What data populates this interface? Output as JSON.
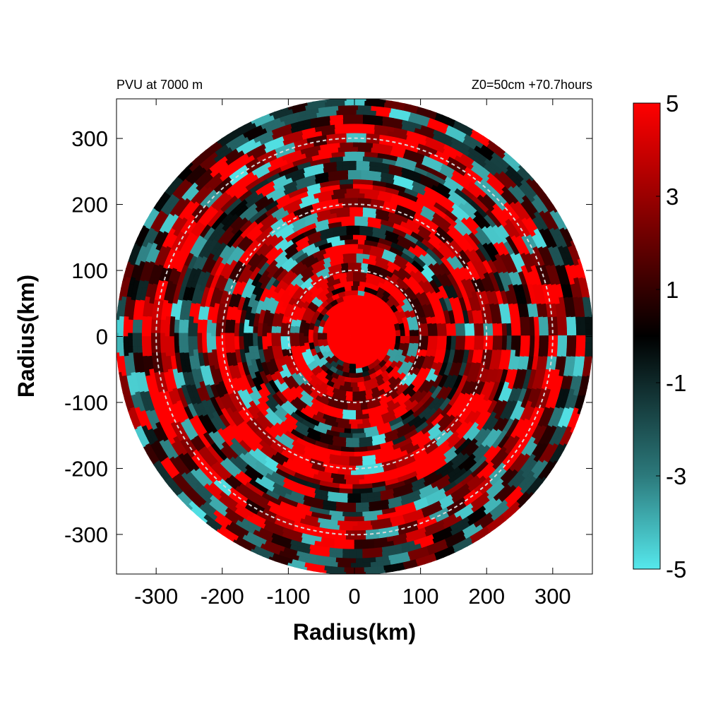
{
  "chart_data": {
    "type": "heatmap",
    "title_left": "PVU at  7000 m",
    "title_right": "Z0=50cm  +70.7hours",
    "xlabel": "Radius(km)",
    "ylabel": "Radius(km)",
    "xlim": [
      -360,
      360
    ],
    "ylim": [
      -360,
      360
    ],
    "x_ticks": [
      -300,
      -200,
      -100,
      0,
      100,
      200,
      300
    ],
    "y_ticks": [
      300,
      200,
      100,
      0,
      -100,
      -200,
      -300
    ],
    "x_tick_labels": [
      "-300",
      "-200",
      "-100",
      "0",
      "100",
      "200",
      "300"
    ],
    "y_tick_labels": [
      "300",
      "200",
      "100",
      "0",
      "-100",
      "-200",
      "-300"
    ],
    "domain_radius_km": 360,
    "reference_circles_km": [
      100,
      200,
      300
    ],
    "colorbar": {
      "min": -5,
      "max": 5,
      "tick_values": [
        5,
        3,
        1,
        -1,
        -3,
        -5
      ],
      "tick_labels": [
        "5",
        "3",
        "1",
        "-1",
        "-3",
        "-5"
      ],
      "colormap": [
        {
          "value": -5,
          "color": "#55e8ec"
        },
        {
          "value": -3,
          "color": "#2c7a7c"
        },
        {
          "value": 0,
          "color": "#000000"
        },
        {
          "value": 3,
          "color": "#9a0000"
        },
        {
          "value": 5,
          "color": "#ff0000"
        }
      ]
    },
    "field_description_features": {
      "core": {
        "center_km": [
          10,
          10
        ],
        "radius_km": 55,
        "value": 5
      },
      "positive_bands_km": [
        [
          60,
          140
        ],
        [
          175,
          230
        ],
        [
          270,
          320
        ]
      ],
      "negative_patch_bands_km": [
        [
          150,
          175
        ],
        [
          240,
          270
        ],
        [
          320,
          350
        ]
      ]
    }
  }
}
